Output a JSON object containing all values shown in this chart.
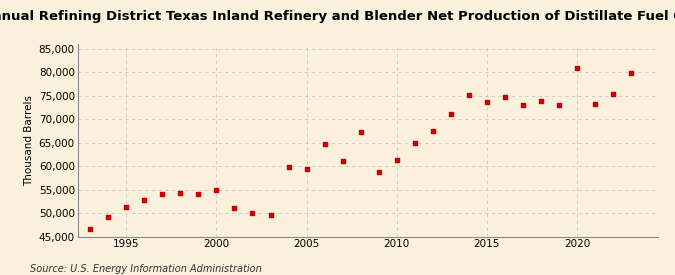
{
  "title": "Annual Refining District Texas Inland Refinery and Blender Net Production of Distillate Fuel Oil",
  "ylabel": "Thousand Barrels",
  "source": "Source: U.S. Energy Information Administration",
  "background_color": "#faf0dc",
  "plot_bg_color": "#faf0dc",
  "dot_color": "#cc0000",
  "years": [
    1993,
    1994,
    1995,
    1996,
    1997,
    1998,
    1999,
    2000,
    2001,
    2002,
    2003,
    2004,
    2005,
    2006,
    2007,
    2008,
    2009,
    2010,
    2011,
    2012,
    2013,
    2014,
    2015,
    2016,
    2017,
    2018,
    2019,
    2020,
    2021,
    2022,
    2023
  ],
  "values": [
    46500,
    49200,
    51200,
    52700,
    54000,
    54300,
    54000,
    55000,
    51100,
    50000,
    49500,
    59800,
    59400,
    64800,
    61000,
    67200,
    58800,
    61400,
    65000,
    67500,
    71000,
    75200,
    73700,
    74800,
    73100,
    73800,
    73100,
    80900,
    73200,
    75300,
    79900
  ],
  "ylim": [
    45000,
    86000
  ],
  "yticks": [
    45000,
    50000,
    55000,
    60000,
    65000,
    70000,
    75000,
    80000,
    85000
  ],
  "xlim": [
    1992.3,
    2024.5
  ],
  "xticks": [
    1995,
    2000,
    2005,
    2010,
    2015,
    2020
  ],
  "grid_color": "#c8c8c8",
  "title_fontsize": 9.5,
  "label_fontsize": 7.5,
  "tick_fontsize": 7.5,
  "source_fontsize": 7,
  "dot_size": 12
}
